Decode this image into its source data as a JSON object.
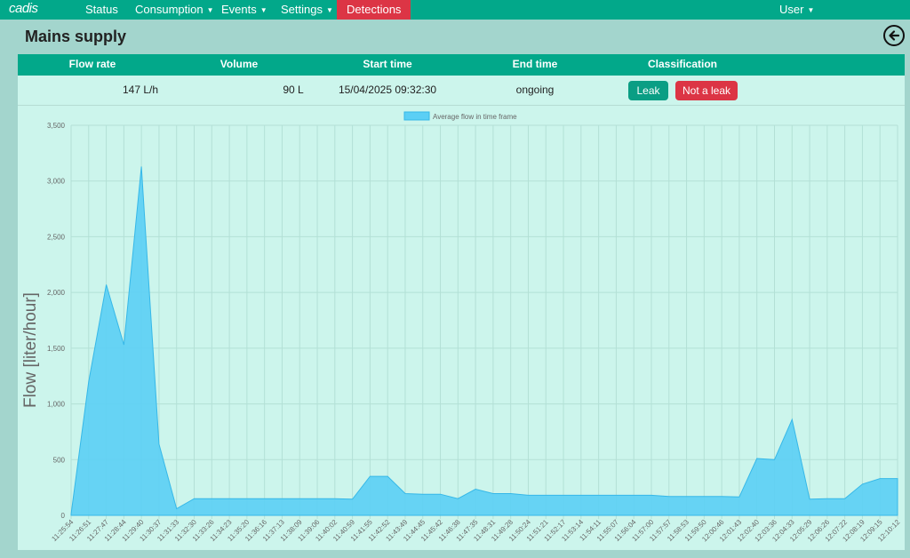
{
  "nav": {
    "logo": "cadis",
    "items": [
      {
        "label": "Status"
      },
      {
        "label": "Consumption",
        "caret": "▼"
      },
      {
        "label": "Events",
        "caret": "▼"
      },
      {
        "label": "Settings",
        "caret": "▼"
      },
      {
        "label": "Detections",
        "active": true
      }
    ],
    "user": {
      "label": "User",
      "caret": "▼"
    }
  },
  "page_title": "Mains supply",
  "back_icon": "arrow-left-circle-icon",
  "table": {
    "headers": [
      "Flow rate",
      "Volume",
      "Start time",
      "End time",
      "Classification"
    ],
    "row": {
      "flow_rate": "147 L/h",
      "volume": "90 L",
      "start_time": "15/04/2025 09:32:30",
      "end_time": "ongoing"
    },
    "buttons": {
      "leak": "Leak",
      "not_leak": "Not a leak"
    }
  },
  "colors": {
    "accent": "#02a88a",
    "danger": "#dc3545",
    "area_fill": "#5bcff5",
    "area_line": "#36b8e8"
  },
  "chart_data": {
    "type": "area",
    "legend": "Average flow in time frame",
    "legend_position": "top-center",
    "ylabel": "Flow [liter/hour]",
    "xlabel": "",
    "ylim": [
      0,
      3500
    ],
    "yticks": [
      "0",
      "500",
      "1,000",
      "1,500",
      "2,000",
      "2,500",
      "3,000",
      "3,500"
    ],
    "grid": true,
    "x": [
      "11:25:54",
      "11:26:51",
      "11:27:47",
      "11:28:44",
      "11:29:40",
      "11:30:37",
      "11:31:33",
      "11:32:30",
      "11:33:26",
      "11:34:23",
      "11:35:20",
      "11:36:16",
      "11:37:13",
      "11:38:09",
      "11:39:06",
      "11:40:02",
      "11:40:59",
      "11:41:55",
      "11:42:52",
      "11:43:49",
      "11:44:45",
      "11:45:42",
      "11:46:38",
      "11:47:35",
      "11:48:31",
      "11:49:28",
      "11:50:24",
      "11:51:21",
      "11:52:17",
      "11:53:14",
      "11:54:11",
      "11:55:07",
      "11:56:04",
      "11:57:00",
      "11:57:57",
      "11:58:53",
      "11:59:50",
      "12:00:46",
      "12:01:43",
      "12:02:40",
      "12:03:36",
      "12:04:33",
      "12:05:29",
      "12:06:26",
      "12:07:22",
      "12:08:19",
      "12:09:15",
      "12:10:12"
    ],
    "values": [
      10,
      1200,
      2070,
      1530,
      3130,
      640,
      60,
      150,
      150,
      150,
      150,
      150,
      150,
      150,
      150,
      150,
      145,
      350,
      350,
      195,
      190,
      190,
      150,
      235,
      195,
      195,
      180,
      180,
      180,
      180,
      180,
      180,
      180,
      180,
      170,
      170,
      170,
      170,
      165,
      510,
      500,
      860,
      145,
      150,
      150,
      280,
      330,
      330
    ]
  }
}
